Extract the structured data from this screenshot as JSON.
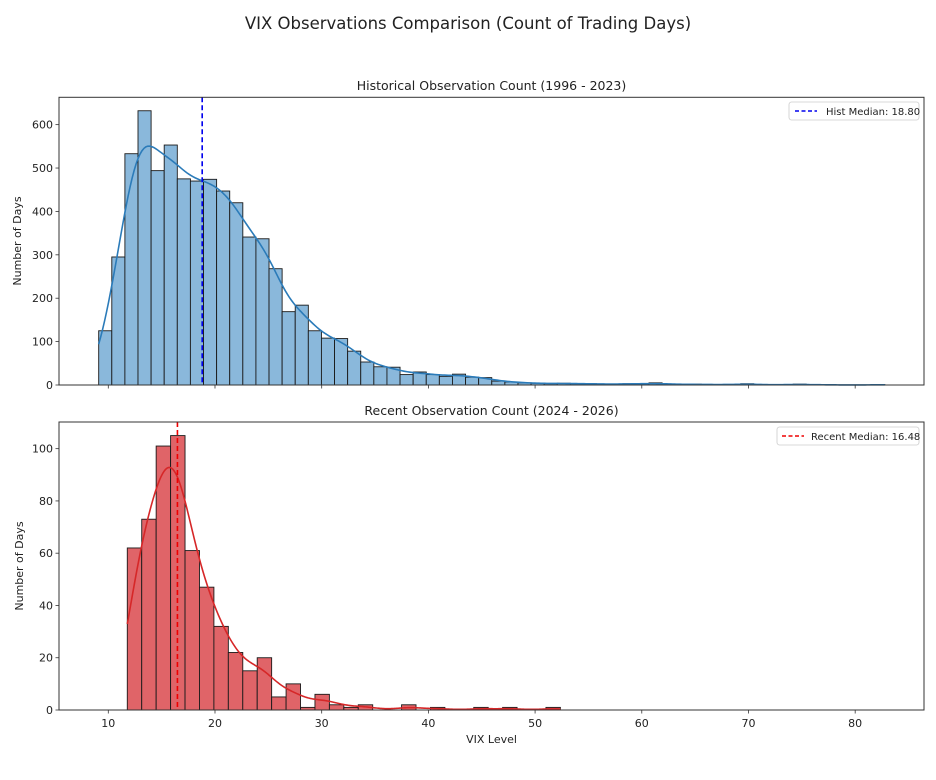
{
  "chart_data": [
    {
      "type": "bar",
      "suptitle": "VIX Observations Comparison (Count of Trading Days)",
      "title": "Historical Observation Count (1996 - 2023)",
      "xlabel": "",
      "ylabel": "Number of Days",
      "xlim": [
        5.38,
        86.45
      ],
      "ylim": [
        0,
        663
      ],
      "xticks": [
        10,
        20,
        30,
        40,
        50,
        60,
        70,
        80
      ],
      "xtick_labels_shown": false,
      "yticks": [
        0,
        100,
        200,
        300,
        400,
        500,
        600
      ],
      "ytick_labels": [
        "0",
        "100",
        "200",
        "300",
        "400",
        "500",
        "600"
      ],
      "bin_start": 9.1,
      "bin_width": 1.228,
      "counts": [
        125,
        295,
        533,
        632,
        494,
        553,
        475,
        470,
        474,
        447,
        420,
        341,
        337,
        268,
        169,
        184,
        125,
        108,
        107,
        78,
        53,
        42,
        41,
        24,
        30,
        24,
        20,
        25,
        18,
        17,
        9,
        7,
        5,
        4,
        3,
        4,
        3,
        3,
        2,
        2,
        3,
        2,
        5,
        2,
        1,
        2,
        1,
        1,
        1,
        3,
        1,
        0,
        1,
        2,
        0,
        1,
        0,
        0,
        0,
        1
      ],
      "kde": true,
      "median": 18.8,
      "legend": {
        "label": "Hist Median: 18.80",
        "position": "top-right"
      },
      "bar_color": "#8ab8db",
      "kde_color": "#2b7bb9",
      "median_color": "#0000ee",
      "grid": false
    },
    {
      "type": "bar",
      "title": "Recent Observation Count (2024 - 2026)",
      "xlabel": "VIX Level",
      "ylabel": "Number of Days",
      "xlim": [
        5.38,
        86.45
      ],
      "ylim": [
        0,
        110.2
      ],
      "xticks": [
        10,
        20,
        30,
        40,
        50,
        60,
        70,
        80
      ],
      "xtick_labels": [
        "10",
        "20",
        "30",
        "40",
        "50",
        "60",
        "70",
        "80"
      ],
      "yticks": [
        0,
        20,
        40,
        60,
        80,
        100
      ],
      "ytick_labels": [
        "0",
        "20",
        "40",
        "60",
        "80",
        "100"
      ],
      "bin_start": 11.78,
      "bin_width": 1.353,
      "counts": [
        62,
        73,
        101,
        105,
        61,
        47,
        32,
        22,
        15,
        20,
        5,
        10,
        1,
        6,
        2,
        1,
        2,
        0,
        0,
        2,
        0,
        1,
        0,
        0,
        1,
        0,
        1,
        0,
        0,
        1
      ],
      "kde": true,
      "median": 16.48,
      "legend": {
        "label": "Recent Median: 16.48",
        "position": "top-right"
      },
      "bar_color": "#e06468",
      "kde_color": "#d62728",
      "median_color": "#ee0000",
      "grid": false
    }
  ]
}
